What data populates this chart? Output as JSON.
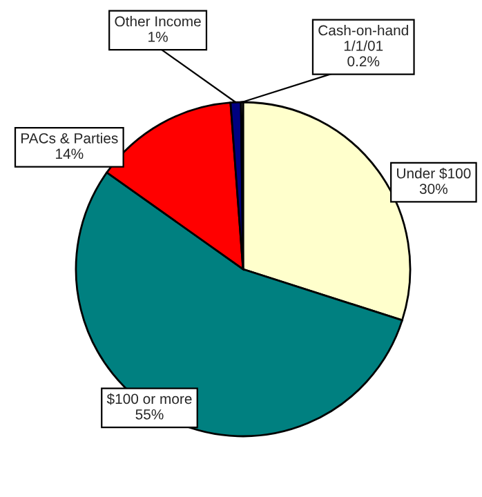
{
  "chart_data": {
    "type": "pie",
    "categories": [
      "Under $100",
      "$100 or more",
      "PACs & Parties",
      "Other Income",
      "Cash-on-hand\n1/1/01"
    ],
    "values": [
      30,
      55,
      14,
      1,
      0.2
    ],
    "colors": [
      "#ffffcc",
      "#008080",
      "#ff0000",
      "#000080",
      "#ffffff"
    ],
    "value_labels": [
      "30%",
      "55%",
      "14%",
      "1%",
      "0.2%"
    ],
    "legend": false
  }
}
